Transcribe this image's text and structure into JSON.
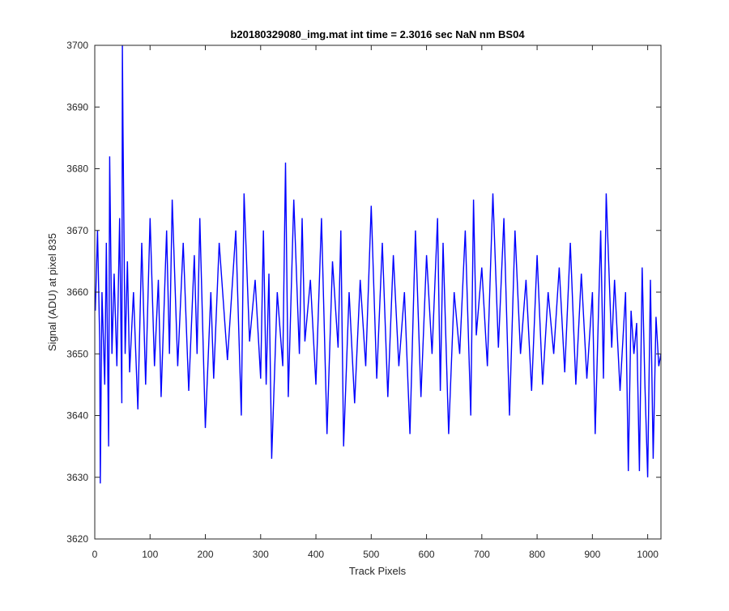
{
  "chart_data": {
    "type": "line",
    "title": "b20180329080_img.mat int time = 2.3016 sec  NaN nm BS04",
    "xlabel": "Track Pixels",
    "ylabel": "Signal (ADU) at pixel 835",
    "xlim": [
      0,
      1024
    ],
    "ylim": [
      3620,
      3700
    ],
    "xticks": [
      0,
      100,
      200,
      300,
      400,
      500,
      600,
      700,
      800,
      900,
      1000
    ],
    "yticks": [
      3620,
      3630,
      3640,
      3650,
      3660,
      3670,
      3680,
      3690,
      3700
    ],
    "grid": false,
    "legend": "none",
    "series": [
      {
        "color": "#0000ff",
        "x": [
          1,
          5,
          9,
          10,
          13,
          18,
          21,
          25,
          27,
          31,
          35,
          40,
          45,
          49,
          50,
          51,
          55,
          59,
          63,
          70,
          78,
          85,
          92,
          100,
          108,
          115,
          120,
          130,
          135,
          140,
          150,
          160,
          170,
          180,
          185,
          190,
          200,
          210,
          215,
          225,
          240,
          255,
          265,
          270,
          280,
          290,
          300,
          305,
          310,
          315,
          320,
          330,
          340,
          345,
          350,
          360,
          370,
          375,
          380,
          390,
          400,
          410,
          420,
          430,
          440,
          445,
          450,
          460,
          470,
          480,
          490,
          500,
          510,
          520,
          530,
          540,
          550,
          560,
          570,
          580,
          590,
          600,
          610,
          620,
          625,
          630,
          640,
          650,
          660,
          670,
          680,
          685,
          690,
          700,
          710,
          720,
          730,
          740,
          750,
          760,
          770,
          780,
          790,
          800,
          810,
          820,
          830,
          840,
          850,
          860,
          870,
          880,
          890,
          900,
          905,
          915,
          920,
          925,
          935,
          940,
          950,
          960,
          965,
          970,
          975,
          980,
          985,
          990,
          995,
          1000,
          1005,
          1010,
          1015,
          1020,
          1024
        ],
        "y": [
          3657,
          3670,
          3652,
          3629,
          3660,
          3645,
          3668,
          3635,
          3682,
          3650,
          3663,
          3648,
          3672,
          3642,
          3700,
          3687,
          3650,
          3665,
          3647,
          3660,
          3641,
          3668,
          3645,
          3672,
          3648,
          3662,
          3643,
          3670,
          3650,
          3675,
          3648,
          3668,
          3644,
          3666,
          3650,
          3672,
          3638,
          3660,
          3646,
          3668,
          3649,
          3670,
          3640,
          3676,
          3652,
          3662,
          3646,
          3670,
          3645,
          3663,
          3633,
          3660,
          3648,
          3681,
          3643,
          3675,
          3650,
          3672,
          3652,
          3662,
          3645,
          3672,
          3637,
          3665,
          3651,
          3670,
          3635,
          3660,
          3642,
          3662,
          3648,
          3674,
          3646,
          3668,
          3643,
          3666,
          3648,
          3660,
          3637,
          3670,
          3643,
          3666,
          3650,
          3672,
          3644,
          3668,
          3637,
          3660,
          3650,
          3670,
          3640,
          3675,
          3653,
          3664,
          3648,
          3676,
          3651,
          3672,
          3640,
          3670,
          3650,
          3662,
          3644,
          3666,
          3645,
          3660,
          3650,
          3664,
          3647,
          3668,
          3645,
          3663,
          3646,
          3660,
          3637,
          3670,
          3646,
          3676,
          3651,
          3662,
          3644,
          3660,
          3631,
          3657,
          3650,
          3655,
          3631,
          3664,
          3645,
          3630,
          3662,
          3633,
          3656,
          3648,
          3650
        ]
      }
    ]
  }
}
